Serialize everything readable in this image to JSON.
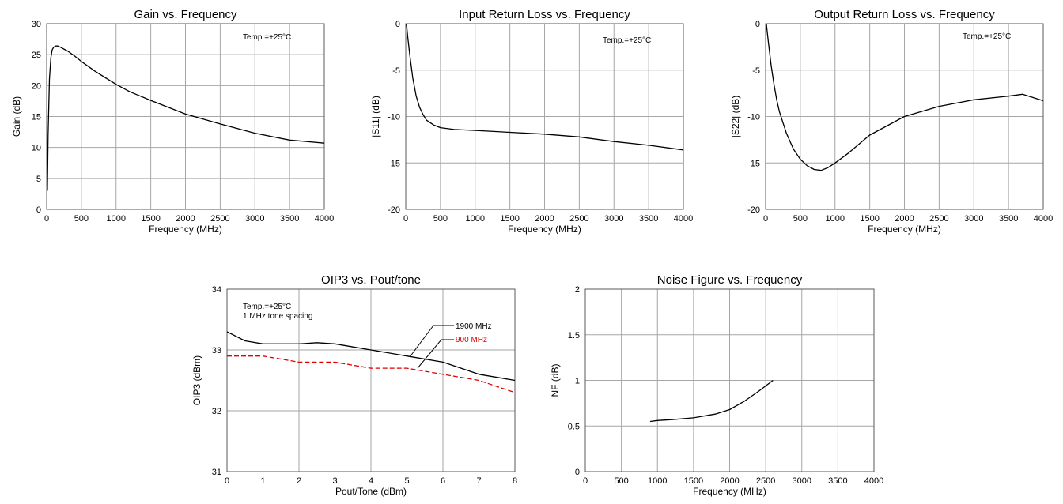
{
  "chart_data": [
    {
      "id": "gain",
      "type": "line",
      "title": "Gain vs. Frequency",
      "xlabel": "Frequency (MHz)",
      "ylabel": "Gain (dB)",
      "xlim": [
        0,
        4000
      ],
      "ylim": [
        0,
        30
      ],
      "xticks": [
        0,
        500,
        1000,
        1500,
        2000,
        2500,
        3000,
        3500,
        4000
      ],
      "yticks": [
        0,
        5,
        10,
        15,
        20,
        25,
        30
      ],
      "grid": true,
      "annotations": [
        "Temp.=+25°C"
      ],
      "series": [
        {
          "color": "#000000",
          "dash": false,
          "x": [
            10,
            20,
            40,
            60,
            80,
            100,
            130,
            160,
            200,
            300,
            400,
            500,
            700,
            1000,
            1200,
            1500,
            2000,
            2500,
            3000,
            3500,
            4000
          ],
          "y": [
            3,
            12,
            21,
            24.5,
            25.8,
            26.2,
            26.4,
            26.4,
            26.2,
            25.6,
            24.8,
            23.9,
            22.3,
            20.2,
            19.0,
            17.6,
            15.4,
            13.8,
            12.3,
            11.2,
            10.7
          ]
        }
      ]
    },
    {
      "id": "s11",
      "type": "line",
      "title": "Input Return Loss vs. Frequency",
      "xlabel": "Frequency (MHz)",
      "ylabel": "|S11| (dB)",
      "xlim": [
        0,
        4000
      ],
      "ylim": [
        -20,
        0
      ],
      "xticks": [
        0,
        500,
        1000,
        1500,
        2000,
        2500,
        3000,
        3500,
        4000
      ],
      "yticks": [
        -20,
        -15,
        -10,
        -5,
        0
      ],
      "grid": true,
      "annotations": [
        "Temp.=+25°C"
      ],
      "series": [
        {
          "color": "#000000",
          "dash": false,
          "x": [
            10,
            30,
            60,
            100,
            150,
            200,
            250,
            300,
            400,
            500,
            700,
            1000,
            1500,
            2000,
            2500,
            3000,
            3500,
            4000
          ],
          "y": [
            0,
            -1.5,
            -3.5,
            -5.8,
            -7.8,
            -9.0,
            -9.8,
            -10.4,
            -10.9,
            -11.2,
            -11.4,
            -11.5,
            -11.7,
            -11.9,
            -12.2,
            -12.7,
            -13.1,
            -13.6
          ]
        }
      ]
    },
    {
      "id": "s22",
      "type": "line",
      "title": "Output Return Loss vs. Frequency",
      "xlabel": "Frequency (MHz)",
      "ylabel": "|S22| (dB)",
      "xlim": [
        0,
        4000
      ],
      "ylim": [
        -20,
        0
      ],
      "xticks": [
        0,
        500,
        1000,
        1500,
        2000,
        2500,
        3000,
        3500,
        4000
      ],
      "yticks": [
        -20,
        -15,
        -10,
        -5,
        0
      ],
      "grid": true,
      "annotations": [
        "Temp.=+25°C"
      ],
      "series": [
        {
          "color": "#000000",
          "dash": false,
          "x": [
            10,
            40,
            80,
            120,
            160,
            200,
            300,
            400,
            500,
            600,
            700,
            800,
            900,
            1000,
            1200,
            1500,
            2000,
            2500,
            3000,
            3500,
            3700,
            4000
          ],
          "y": [
            0,
            -2.0,
            -4.5,
            -6.5,
            -8.2,
            -9.5,
            -11.8,
            -13.5,
            -14.6,
            -15.3,
            -15.7,
            -15.8,
            -15.5,
            -15.0,
            -13.9,
            -12.0,
            -10.0,
            -8.9,
            -8.2,
            -7.8,
            -7.6,
            -8.3
          ]
        }
      ]
    },
    {
      "id": "oip3",
      "type": "line",
      "title": "OIP3 vs. Pout/tone",
      "xlabel": "Pout/Tone (dBm)",
      "ylabel": "OIP3 (dBm)",
      "xlim": [
        0,
        8
      ],
      "ylim": [
        31,
        34
      ],
      "xticks": [
        0,
        1,
        2,
        3,
        4,
        5,
        6,
        7,
        8
      ],
      "yticks": [
        31,
        32,
        33,
        34
      ],
      "grid": true,
      "annotations": [
        "Temp.=+25°C",
        "1 MHz tone spacing"
      ],
      "series": [
        {
          "name": "1900 MHz",
          "color": "#000000",
          "dash": false,
          "x": [
            0,
            0.5,
            1,
            1.5,
            2,
            2.5,
            3,
            3.5,
            4,
            5,
            6,
            7,
            8
          ],
          "y": [
            33.3,
            33.15,
            33.1,
            33.1,
            33.1,
            33.12,
            33.1,
            33.05,
            33.0,
            32.9,
            32.8,
            32.6,
            32.5
          ]
        },
        {
          "name": "900 MHz",
          "color": "#e00000",
          "dash": true,
          "x": [
            0,
            0.5,
            1,
            1.5,
            2,
            2.5,
            3,
            3.5,
            4,
            4.5,
            5,
            5.5,
            6,
            6.5,
            7,
            7.5,
            8
          ],
          "y": [
            32.9,
            32.9,
            32.9,
            32.85,
            32.8,
            32.8,
            32.8,
            32.75,
            32.7,
            32.7,
            32.7,
            32.65,
            32.6,
            32.55,
            32.5,
            32.4,
            32.3
          ]
        }
      ]
    },
    {
      "id": "nf",
      "type": "line",
      "title": "Noise Figure vs. Frequency",
      "xlabel": "Frequency (MHz)",
      "ylabel": "NF (dB)",
      "xlim": [
        0,
        4000
      ],
      "ylim": [
        0,
        2
      ],
      "xticks": [
        0,
        500,
        1000,
        1500,
        2000,
        2500,
        3000,
        3500,
        4000
      ],
      "yticks": [
        0,
        0.5,
        1,
        1.5,
        2
      ],
      "grid": true,
      "annotations": [],
      "series": [
        {
          "color": "#000000",
          "dash": false,
          "x": [
            900,
            1000,
            1200,
            1500,
            1800,
            2000,
            2200,
            2400,
            2600
          ],
          "y": [
            0.55,
            0.56,
            0.57,
            0.59,
            0.63,
            0.68,
            0.77,
            0.88,
            1.0
          ]
        }
      ]
    }
  ]
}
